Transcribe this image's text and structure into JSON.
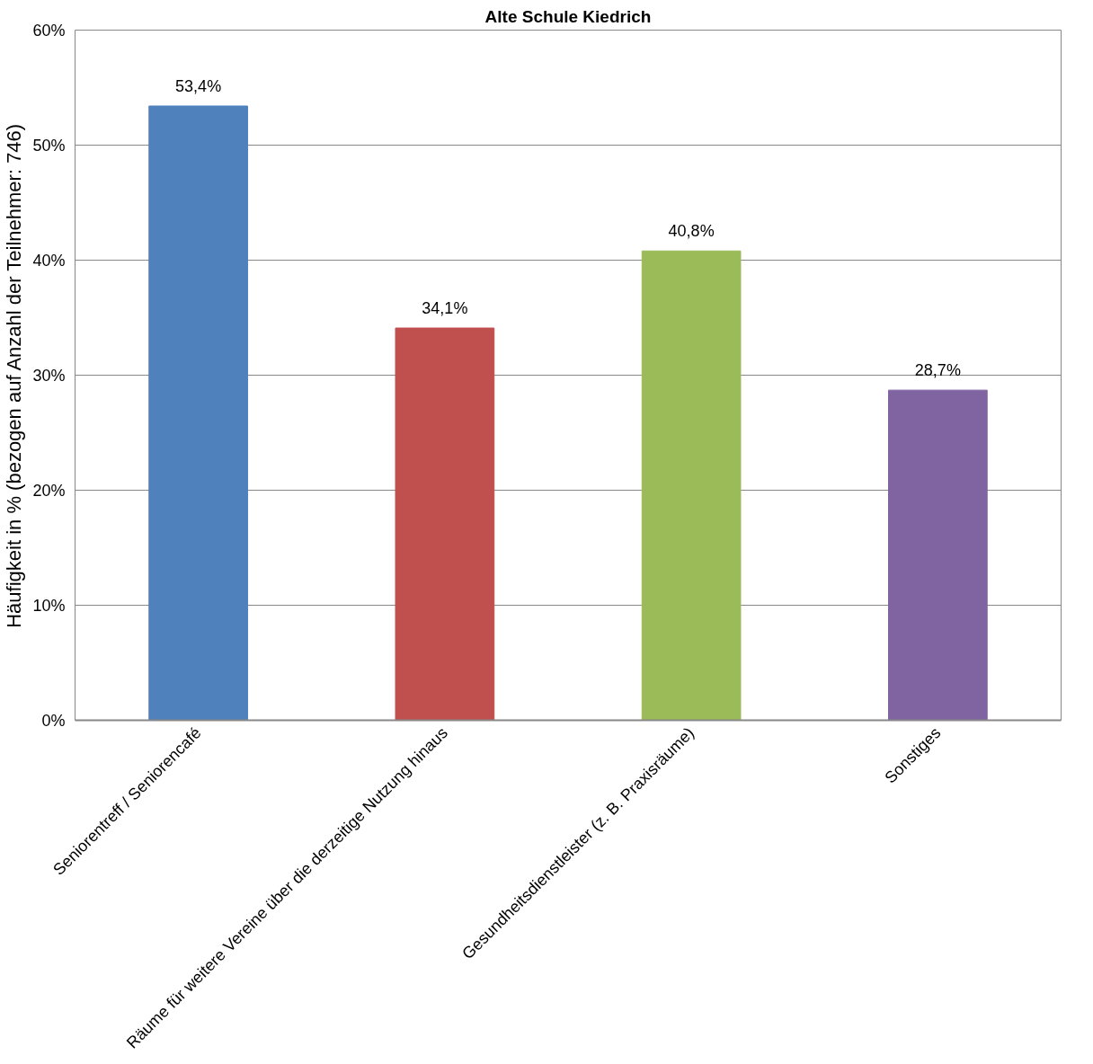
{
  "chart_data": {
    "type": "bar",
    "title": "Alte Schule Kiedrich",
    "ylabel": "Häufigkeit in % (bezogen auf Anzahl der Teilnehmer: 746)",
    "categories": [
      "Seniorentreff / Seniorencafé",
      "Räume für weitere Vereine über die derzeitige Nutzung hinaus",
      "Gesundheitsdienstleister (z. B. Praxisräume)",
      "Sonstiges"
    ],
    "values": [
      53.4,
      34.1,
      40.8,
      28.7
    ],
    "colors": [
      "#4f81bd",
      "#c0504d",
      "#9bbb59",
      "#8064a2"
    ],
    "value_labels": [
      "53,4%",
      "34,1%",
      "40,8%",
      "28,7%"
    ],
    "ylim": [
      0,
      60
    ],
    "yticks": [
      {
        "value": 0,
        "label": "0%"
      },
      {
        "value": 10,
        "label": "10%"
      },
      {
        "value": 20,
        "label": "20%"
      },
      {
        "value": 30,
        "label": "30%"
      },
      {
        "value": 40,
        "label": "40%"
      },
      {
        "value": 50,
        "label": "50%"
      },
      {
        "value": 60,
        "label": "60%"
      }
    ],
    "grid": "y"
  }
}
